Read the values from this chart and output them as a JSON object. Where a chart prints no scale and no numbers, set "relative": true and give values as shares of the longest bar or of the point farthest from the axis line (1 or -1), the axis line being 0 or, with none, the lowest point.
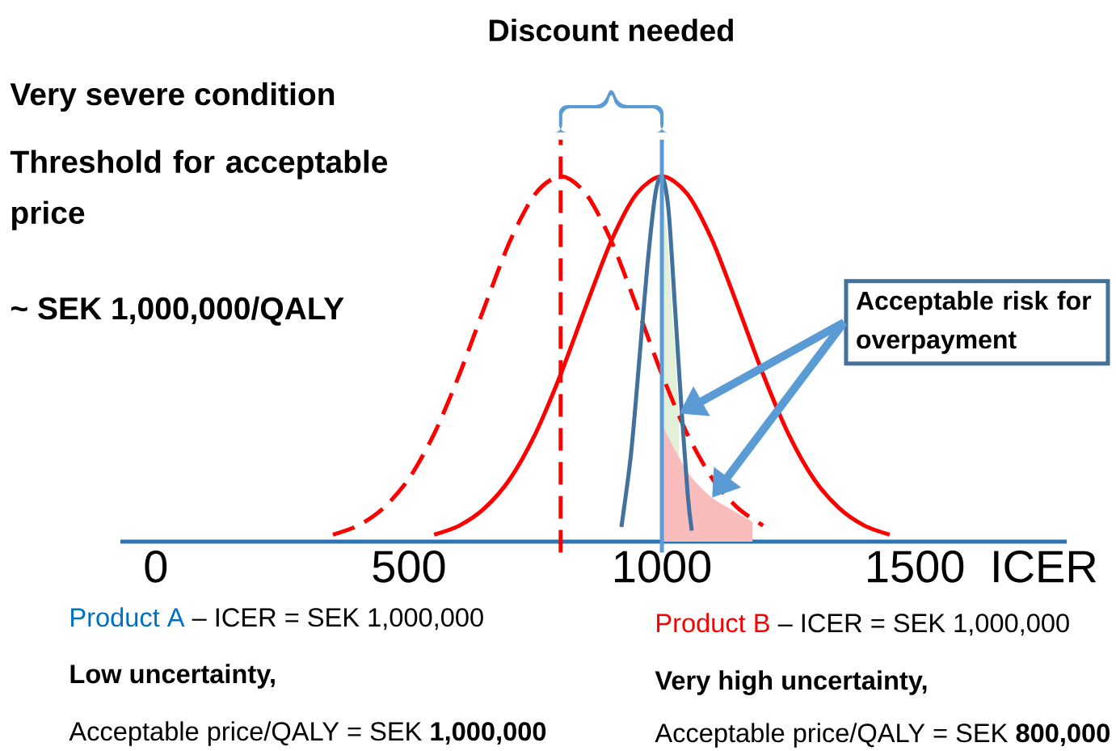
{
  "chart_data": {
    "type": "line",
    "relative": true,
    "xlabel": "ICER",
    "xlim": [
      -70,
      1800
    ],
    "xticks": [
      0,
      500,
      1000,
      1500
    ],
    "series": [
      {
        "type": "area",
        "color": "#e2f0d9",
        "x": [
          1000,
          1010,
          1022,
          1034
        ],
        "values": [
          0.95,
          0.85,
          0.6,
          0.35
        ]
      },
      {
        "type": "area",
        "color": "#f8bcbc",
        "x": [
          1000,
          1051,
          1099,
          1179
        ],
        "values": [
          0.32,
          0.19,
          0.12,
          0.055
        ]
      },
      {
        "color": "#ff0000",
        "line_style": "dashed",
        "x": [
          350,
          400,
          450,
          500,
          550,
          600,
          650,
          700,
          750,
          800,
          850,
          900,
          950,
          1000,
          1050,
          1100,
          1150,
          1200
        ],
        "values": [
          0.019,
          0.044,
          0.092,
          0.172,
          0.295,
          0.458,
          0.644,
          0.823,
          0.952,
          1,
          0.952,
          0.823,
          0.644,
          0.458,
          0.295,
          0.172,
          0.092,
          0.044
        ]
      },
      {
        "color": "#ff0000",
        "x": [
          550,
          600,
          650,
          700,
          750,
          800,
          850,
          900,
          950,
          1000,
          1050,
          1100,
          1150,
          1200,
          1250,
          1300,
          1350,
          1400,
          1450
        ],
        "values": [
          0.019,
          0.044,
          0.092,
          0.172,
          0.295,
          0.458,
          0.644,
          0.823,
          0.952,
          1,
          0.952,
          0.823,
          0.644,
          0.458,
          0.295,
          0.172,
          0.092,
          0.044,
          0.019
        ]
      },
      {
        "color": "#41719c",
        "x": [
          920,
          939,
          955,
          971,
          987,
          1000,
          1013,
          1026,
          1038,
          1051,
          1059
        ],
        "values": [
          0.04,
          0.24,
          0.49,
          0.75,
          0.95,
          1,
          0.91,
          0.64,
          0.38,
          0.13,
          0.03
        ]
      }
    ],
    "ref_lines": [
      {
        "axis": "x",
        "value": 800,
        "color": "#ff0000",
        "line_style": "dashed"
      },
      {
        "axis": "x",
        "value": 1000,
        "color": "#5b9bd5"
      }
    ],
    "title": "Discount needed",
    "annotations": [
      "Very severe condition",
      "Threshold for acceptable price",
      "~ SEK 1,000,000/QALY",
      "Acceptable risk for overpayment",
      "Product A",
      "– ICER = SEK 1,000,000",
      "Low uncertainty,",
      "Acceptable price/QALY = SEK **1,000,000**",
      "Product B",
      "– ICER = SEK 1,000,000",
      "Very high uncertainty,",
      "Acceptable price/QALY = SEK **800,000**"
    ]
  }
}
